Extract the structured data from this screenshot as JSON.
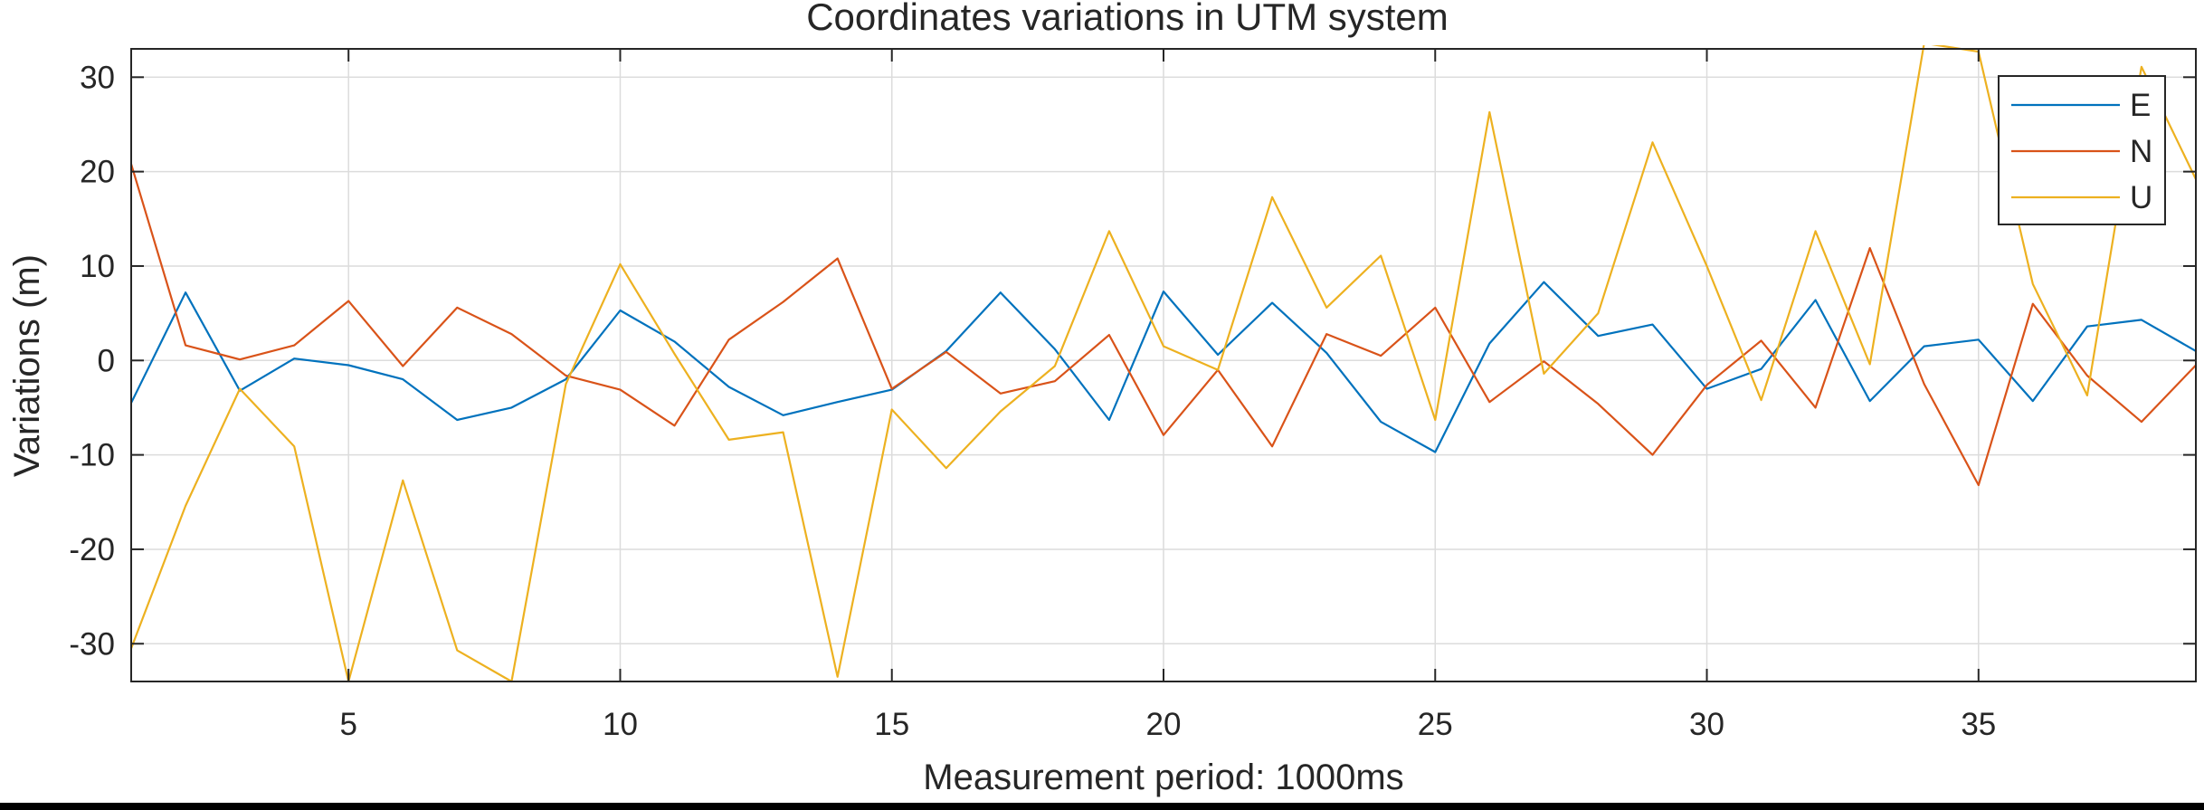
{
  "chart_data": {
    "type": "line",
    "title": "Coordinates variations in UTM system",
    "xlabel": "Measurement period: 1000ms",
    "ylabel": "Variations (m)",
    "xlim": [
      1,
      39
    ],
    "ylim": [
      -34,
      33
    ],
    "xticks": [
      5,
      10,
      15,
      20,
      25,
      30,
      35
    ],
    "yticks": [
      -30,
      -20,
      -10,
      0,
      10,
      20,
      30
    ],
    "grid": true,
    "legend_position": "top-right",
    "x": [
      1,
      2,
      3,
      4,
      5,
      6,
      7,
      8,
      9,
      10,
      11,
      12,
      13,
      14,
      15,
      16,
      17,
      18,
      19,
      20,
      21,
      22,
      23,
      24,
      25,
      26,
      27,
      28,
      29,
      30,
      31,
      32,
      33,
      34,
      35,
      36,
      37,
      38,
      39
    ],
    "series": [
      {
        "name": "E",
        "color": "#0072BD",
        "values": [
          -4.5,
          7.2,
          -3.2,
          0.2,
          -0.5,
          -2.0,
          -6.3,
          -5.0,
          -2.0,
          5.3,
          2.0,
          -2.8,
          -5.8,
          -4.4,
          -3.1,
          1.0,
          7.2,
          1.2,
          -6.3,
          7.3,
          0.6,
          6.1,
          0.8,
          -6.5,
          -9.7,
          1.8,
          8.3,
          2.6,
          3.8,
          -3.0,
          -0.9,
          6.4,
          -4.3,
          1.5,
          2.2,
          -4.3,
          3.6,
          4.3,
          1.0
        ]
      },
      {
        "name": "N",
        "color": "#D95319",
        "values": [
          20.8,
          1.6,
          0.1,
          1.6,
          6.3,
          -0.6,
          5.6,
          2.8,
          -1.6,
          -3.1,
          -6.9,
          2.2,
          6.2,
          10.8,
          -3.0,
          0.9,
          -3.5,
          -2.2,
          2.7,
          -7.9,
          -1.0,
          -9.1,
          2.8,
          0.5,
          5.6,
          -4.4,
          -0.1,
          -4.6,
          -10.0,
          -2.6,
          2.1,
          -5.0,
          11.9,
          -2.5,
          -13.2,
          6.0,
          -1.6,
          -6.5,
          -0.5
        ]
      },
      {
        "name": "U",
        "color": "#EDB120",
        "values": [
          -30.5,
          -15.4,
          -3.0,
          -9.1,
          -34.0,
          -12.7,
          -30.7,
          -34.0,
          -2.5,
          10.2,
          0.7,
          -8.4,
          -7.6,
          -33.5,
          -5.2,
          -11.4,
          -5.4,
          -0.6,
          13.7,
          1.5,
          -1.0,
          17.3,
          5.6,
          11.1,
          -6.3,
          26.3,
          -1.4,
          5.0,
          23.1,
          10.0,
          -4.2,
          13.7,
          -0.4,
          33.6,
          32.7,
          8.1,
          -3.7,
          31.1,
          19.2
        ]
      }
    ]
  }
}
